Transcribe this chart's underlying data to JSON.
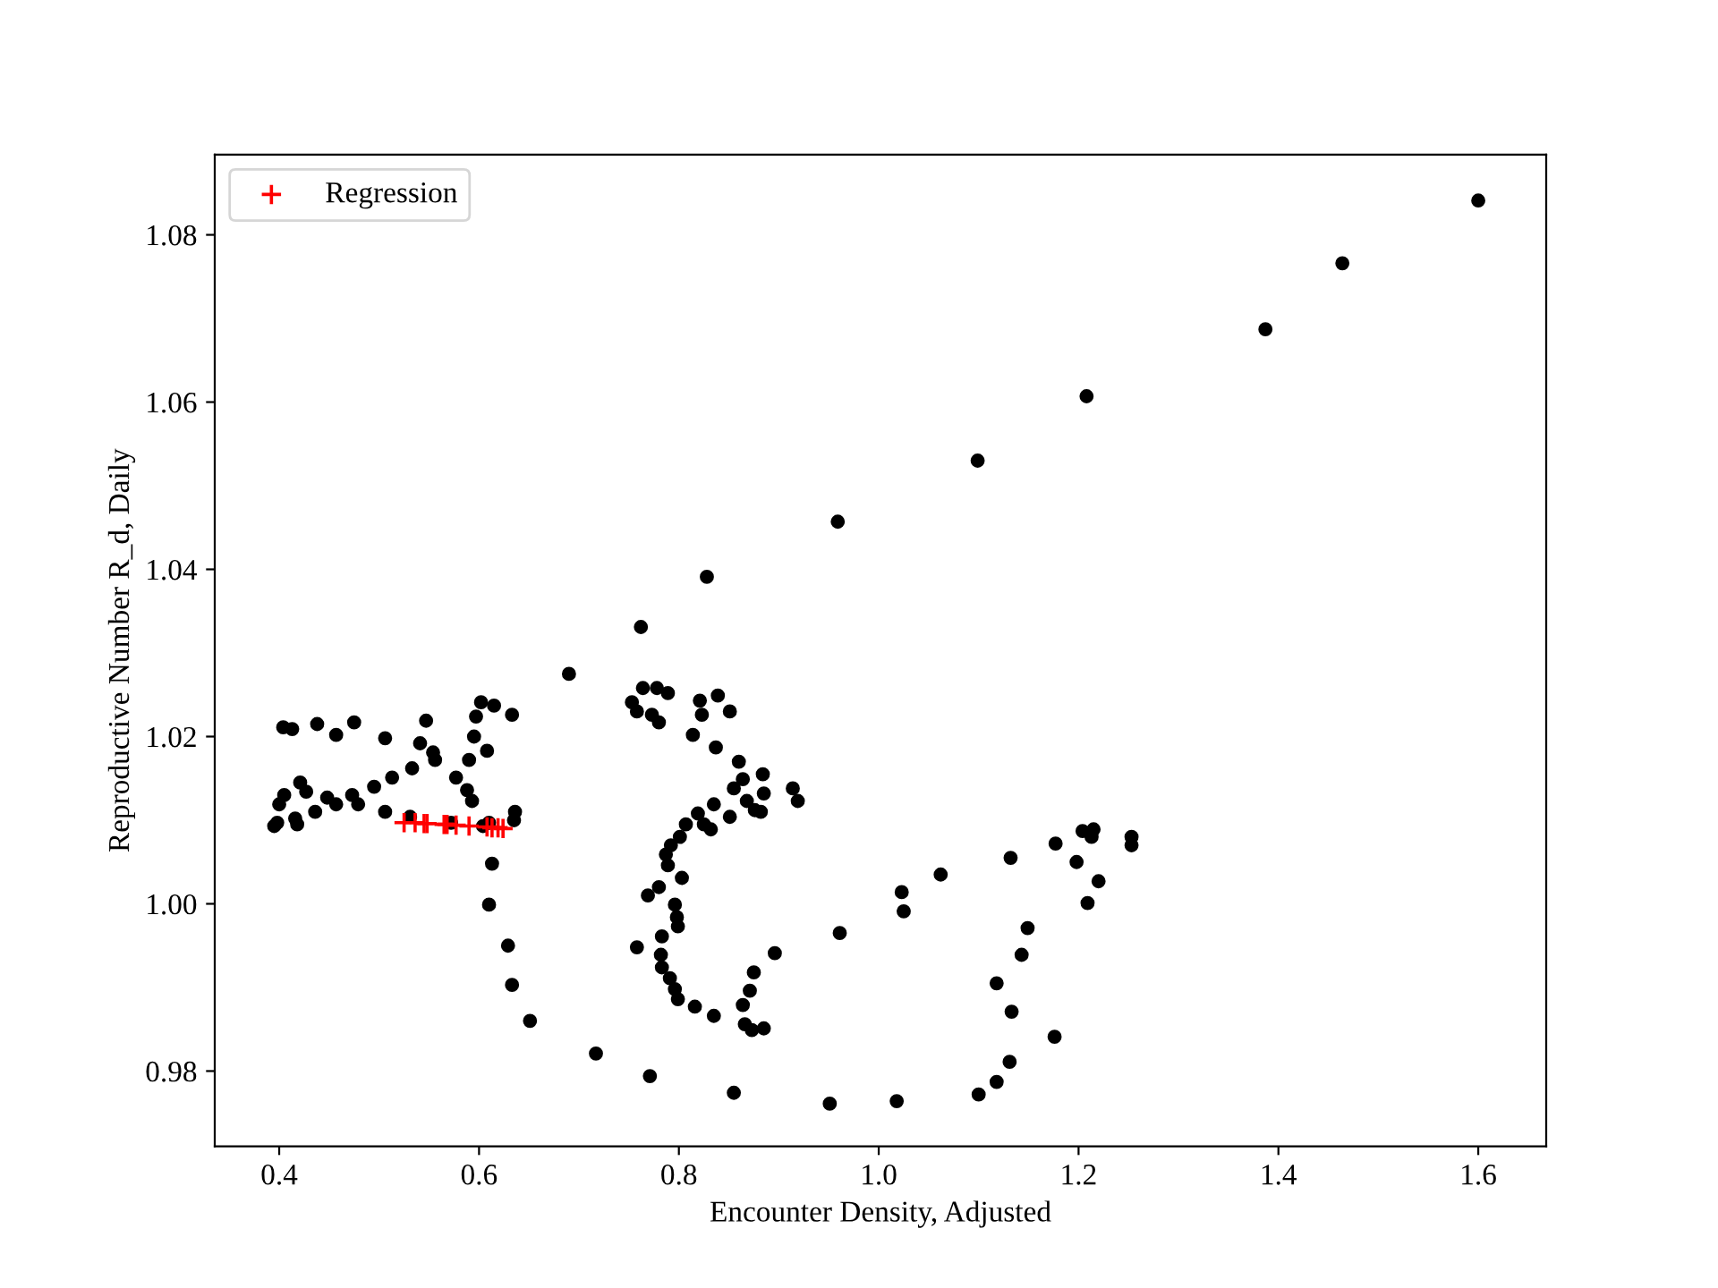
{
  "chart_data": {
    "type": "scatter",
    "xlabel": "Encounter Density, Adjusted",
    "ylabel": "Reproductive Number R_d, Daily",
    "xlim": [
      0.3355,
      1.668
    ],
    "ylim": [
      0.971,
      1.0896
    ],
    "xticks": [
      0.4,
      0.6,
      0.8,
      {
        "value": 1.0,
        "label": "1.0"
      },
      1.2,
      1.4,
      1.6
    ],
    "yticks": [
      0.98,
      {
        "value": 1.0,
        "label": "1.00"
      },
      1.02,
      1.04,
      1.06,
      1.08
    ],
    "grid": false,
    "legend": "top left",
    "series": [
      {
        "color": "#000000",
        "marker": "circle",
        "x": [
          1.6,
          1.464,
          1.387,
          1.208,
          1.099,
          0.959,
          0.828,
          0.762,
          0.69,
          0.404,
          0.413,
          0.438,
          0.457,
          0.475,
          0.506,
          0.547,
          0.602,
          0.615,
          0.633,
          0.597,
          0.595,
          0.608,
          0.59,
          0.541,
          0.554,
          0.556,
          0.577,
          0.588,
          0.593,
          0.533,
          0.513,
          0.495,
          0.421,
          0.427,
          0.405,
          0.4,
          0.448,
          0.457,
          0.473,
          0.479,
          0.436,
          0.506,
          0.398,
          0.395,
          0.416,
          0.418,
          0.531,
          0.572,
          0.604,
          0.61,
          0.636,
          0.635,
          0.613,
          0.61,
          0.629,
          0.633,
          0.651,
          0.717,
          0.753,
          0.758,
          0.764,
          0.778,
          0.789,
          0.773,
          0.78,
          0.821,
          0.823,
          0.839,
          0.851,
          0.814,
          0.837,
          0.86,
          0.864,
          0.884,
          0.885,
          0.855,
          0.868,
          0.876,
          0.882,
          0.914,
          0.919,
          0.835,
          0.851,
          0.819,
          0.825,
          0.807,
          0.832,
          0.801,
          0.792,
          0.787,
          0.789,
          0.803,
          0.78,
          0.769,
          0.796,
          0.798,
          0.799,
          0.783,
          0.758,
          0.782,
          0.783,
          0.791,
          0.796,
          0.799,
          0.816,
          0.835,
          0.864,
          0.866,
          0.873,
          0.885,
          0.871,
          0.875,
          0.896,
          0.961,
          0.771,
          0.855,
          0.951,
          1.018,
          1.023,
          1.025,
          1.062,
          1.132,
          1.177,
          1.198,
          1.204,
          1.215,
          1.213,
          1.253,
          1.253,
          1.22,
          1.209,
          1.149,
          1.143,
          1.118,
          1.133,
          1.176,
          1.131,
          1.118,
          1.1
        ],
        "values": [
          1.0841,
          1.0766,
          1.0687,
          1.0607,
          1.053,
          1.0457,
          1.0391,
          1.0331,
          1.0275,
          1.0211,
          1.0209,
          1.0215,
          1.0202,
          1.0217,
          1.0198,
          1.0219,
          1.0241,
          1.0237,
          1.0226,
          1.0224,
          1.02,
          1.0183,
          1.0172,
          1.0192,
          1.0181,
          1.0172,
          1.0151,
          1.0136,
          1.0123,
          1.0162,
          1.0151,
          1.014,
          1.0145,
          1.0134,
          1.013,
          1.0119,
          1.0127,
          1.0119,
          1.013,
          1.0119,
          1.011,
          1.011,
          1.0097,
          1.0093,
          1.0102,
          1.0095,
          1.0104,
          1.0097,
          1.0093,
          1.0097,
          1.011,
          1.01,
          1.0048,
          0.9999,
          0.995,
          0.9903,
          0.986,
          0.9821,
          1.0241,
          1.023,
          1.0258,
          1.0258,
          1.0252,
          1.0226,
          1.0217,
          1.0243,
          1.0226,
          1.0249,
          1.023,
          1.0202,
          1.0187,
          1.017,
          1.0149,
          1.0155,
          1.0132,
          1.0138,
          1.0123,
          1.0112,
          1.011,
          1.0138,
          1.0123,
          1.0119,
          1.0104,
          1.0108,
          1.0095,
          1.0095,
          1.0089,
          1.008,
          1.007,
          1.0059,
          1.0046,
          1.0031,
          1.002,
          1.001,
          0.9999,
          0.9984,
          0.9973,
          0.9961,
          0.9948,
          0.9939,
          0.9924,
          0.9911,
          0.9898,
          0.9886,
          0.9877,
          0.9866,
          0.9879,
          0.9856,
          0.9849,
          0.9851,
          0.9896,
          0.9918,
          0.9941,
          0.9965,
          0.9794,
          0.9774,
          0.9761,
          0.9764,
          1.0014,
          0.9991,
          1.0035,
          1.0055,
          1.0072,
          1.005,
          1.0087,
          1.0089,
          1.008,
          1.008,
          1.007,
          1.0027,
          1.0001,
          0.9971,
          0.9939,
          0.9905,
          0.9871,
          0.9841,
          0.9811,
          0.9787,
          0.9772
        ]
      },
      {
        "name": "Regression",
        "color": "#ff0000",
        "marker": "cross",
        "x": [
          0.525,
          0.536,
          0.545,
          0.548,
          0.565,
          0.568,
          0.577,
          0.59,
          0.608,
          0.613,
          0.619,
          0.624
        ],
        "values": [
          1.0097,
          1.0097,
          1.0096,
          1.0096,
          1.0095,
          1.0095,
          1.0094,
          1.0093,
          1.0092,
          1.0091,
          1.0091,
          1.009
        ]
      }
    ]
  }
}
